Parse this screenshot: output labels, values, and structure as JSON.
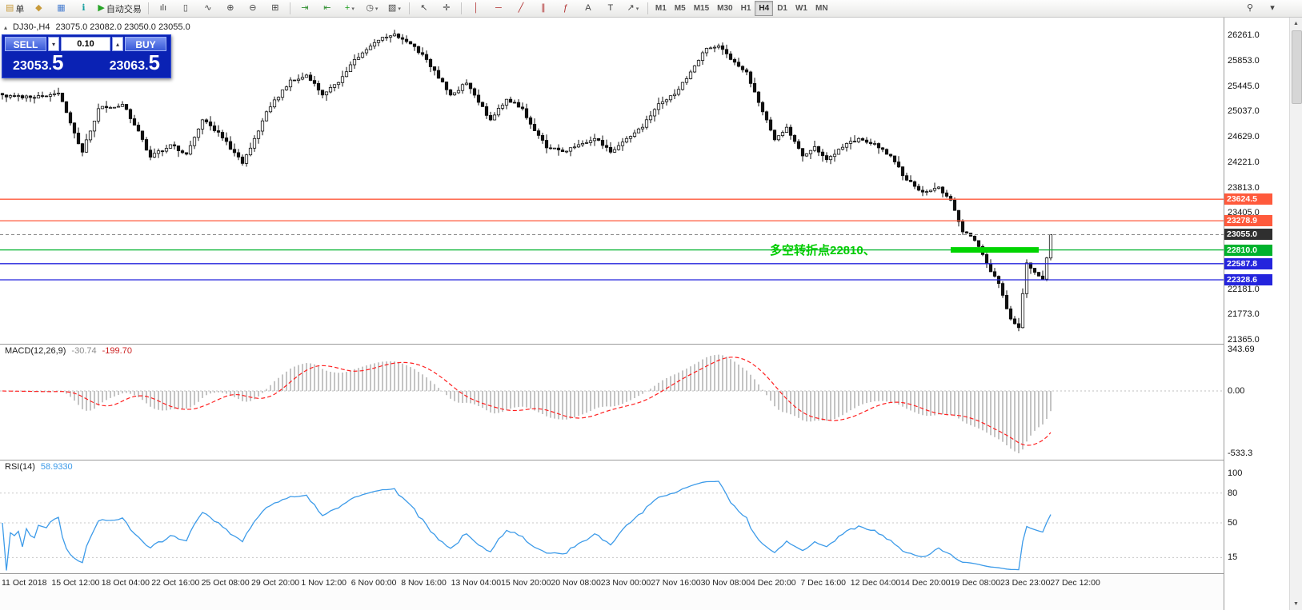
{
  "toolbar": {
    "groups": [
      {
        "name": "trade-group",
        "items": [
          {
            "name": "new-order-button",
            "glyph": "▤",
            "glyph_color": "#c89a3a",
            "label": "单"
          },
          {
            "name": "profiles-button",
            "glyph": "◆",
            "glyph_color": "#c89a3a"
          },
          {
            "name": "market-watch-button",
            "glyph": "▦",
            "glyph_color": "#4a7fd0"
          },
          {
            "name": "data-window-button",
            "glyph": "ℹ",
            "glyph_color": "#18a0a0"
          },
          {
            "name": "autotrading-button",
            "glyph": "▶",
            "glyph_color": "#28a428",
            "label": "自动交易"
          }
        ]
      },
      {
        "name": "chart-type-group",
        "items": [
          {
            "name": "bar-chart-button",
            "glyph": "ılı"
          },
          {
            "name": "candlestick-button",
            "glyph": "▯"
          },
          {
            "name": "line-chart-button",
            "glyph": "∿"
          },
          {
            "name": "zoom-in-button",
            "glyph": "⊕"
          },
          {
            "name": "zoom-out-button",
            "glyph": "⊖"
          },
          {
            "name": "tile-windows-button",
            "glyph": "⊞"
          }
        ]
      },
      {
        "name": "chart-tools-group",
        "items": [
          {
            "name": "auto-scroll-button",
            "glyph": "⇥",
            "glyph_color": "#2e8e2e"
          },
          {
            "name": "chart-shift-button",
            "glyph": "⇤",
            "glyph_color": "#2e8e2e"
          },
          {
            "name": "insert-indicator-button",
            "glyph": "+",
            "glyph_color": "#1a9e1a",
            "arrow": "▾"
          },
          {
            "name": "periods-button",
            "glyph": "◷",
            "arrow": "▾"
          },
          {
            "name": "templates-button",
            "glyph": "▧",
            "arrow": "▾"
          }
        ]
      },
      {
        "name": "cursor-group",
        "items": [
          {
            "name": "cursor-button",
            "glyph": "↖"
          },
          {
            "name": "crosshair-button",
            "glyph": "✛"
          }
        ]
      },
      {
        "name": "objects-group",
        "items": [
          {
            "name": "vertical-line-button",
            "glyph": "│",
            "glyph_color": "#b03030"
          },
          {
            "name": "horizontal-line-button",
            "glyph": "─",
            "glyph_color": "#b03030"
          },
          {
            "name": "trendline-button",
            "glyph": "╱",
            "glyph_color": "#b03030"
          },
          {
            "name": "channel-button",
            "glyph": "∥",
            "glyph_color": "#b03030"
          },
          {
            "name": "fibonacci-button",
            "glyph": "ƒ",
            "glyph_color": "#b03030"
          },
          {
            "name": "text-button",
            "glyph": "A"
          },
          {
            "name": "label-button",
            "glyph": "T"
          },
          {
            "name": "shapes-button",
            "glyph": "↗",
            "arrow": "▾"
          }
        ]
      }
    ],
    "timeframes": {
      "items": [
        "M1",
        "M5",
        "M15",
        "M30",
        "H1",
        "H4",
        "D1",
        "W1",
        "MN"
      ],
      "active": "H4"
    },
    "right_items": [
      {
        "name": "search-button",
        "glyph": "⚲"
      },
      {
        "name": "toolbar-options-button",
        "glyph": "▾"
      }
    ]
  },
  "chart": {
    "collapse_glyph": "▴",
    "symbol_label": "DJ30-,H4",
    "ohlc_text": "23075.0 23082.0 23050.0 23055.0",
    "annotation": {
      "text": "多空转折点22810、",
      "color": "#00cc00"
    },
    "levels": [
      {
        "name": "resistance-line-upper",
        "value": 23624.5,
        "label": "23624.5",
        "color": "#ff5a3c"
      },
      {
        "name": "resistance-line-lower",
        "value": 23278.9,
        "label": "23278.9",
        "color": "#ff5a3c"
      },
      {
        "name": "pivot-line-22810",
        "value": 22810.0,
        "label": "22810.0",
        "color": "#00b22d"
      },
      {
        "name": "support-line-upper",
        "value": 22587.8,
        "label": "22587.8",
        "color": "#2424dd"
      },
      {
        "name": "support-line-lower",
        "value": 22328.6,
        "label": "22328.6",
        "color": "#2424dd"
      }
    ],
    "current_price_tag": {
      "label": "23055.0",
      "value": 23055.0,
      "bg": "#2f2f2f"
    },
    "thick_segment": {
      "value": 22810.0,
      "from_bar": 237,
      "to_bar": 259,
      "color": "#00d400"
    },
    "price_axis_labels": [
      "26261.0",
      "25853.0",
      "25445.0",
      "25037.0",
      "24629.0",
      "24221.0",
      "23813.0",
      "23405.0",
      "22181.0",
      "21773.0",
      "21365.0"
    ],
    "time_axis_labels": [
      "11 Oct 2018",
      "15 Oct 12:00",
      "18 Oct 04:00",
      "22 Oct 16:00",
      "25 Oct 08:00",
      "29 Oct 20:00",
      "1 Nov 12:00",
      "6 Nov 00:00",
      "8 Nov 16:00",
      "13 Nov 04:00",
      "15 Nov 20:00",
      "20 Nov 08:00",
      "23 Nov 00:00",
      "27 Nov 16:00",
      "30 Nov 08:00",
      "4 Dec 20:00",
      "7 Dec 16:00",
      "12 Dec 04:00",
      "14 Dec 20:00",
      "19 Dec 08:00",
      "23 Dec 23:00",
      "27 Dec 12:00"
    ]
  },
  "one_click": {
    "sell_label": "SELL",
    "buy_label": "BUY",
    "volume": "0.10",
    "spin_up": "▴",
    "spin_down": "▾",
    "sell_price": {
      "main": "23053.",
      "pip": "5"
    },
    "buy_price": {
      "main": "23063.",
      "pip": "5"
    },
    "panel_bg": "#0a22b4"
  },
  "macd": {
    "name_label": "MACD(12,26,9)",
    "value_main": "-30.74",
    "value_signal": "-199.70",
    "axis_labels": [
      "343.69",
      "0.00",
      "-533.3"
    ],
    "histogram_color": "#c4c4c4",
    "signal_color": "#ff2020"
  },
  "rsi": {
    "name_label": "RSI(14)",
    "value": "58.9330",
    "axis_labels": [
      "100",
      "80",
      "50",
      "15"
    ],
    "level_values": [
      80,
      50,
      15
    ],
    "line_color": "#3d9be9"
  },
  "scrollbar": {
    "up_glyph": "▲",
    "down_glyph": "▼"
  },
  "chart_data": {
    "type": "candlestick",
    "symbol": "DJ30-",
    "timeframe": "H4",
    "bars": 263,
    "price_range": [
      21365.0,
      26261.0
    ],
    "last_close": 23055.0,
    "indicators": [
      {
        "type": "MACD",
        "params": [
          12,
          26,
          9
        ],
        "current": [
          -30.74,
          -199.7
        ],
        "range": [
          -533.3,
          343.69
        ]
      },
      {
        "type": "RSI",
        "params": [
          14
        ],
        "current": 58.933
      }
    ],
    "close_keypoints": [
      [
        0,
        25300
      ],
      [
        8,
        25250
      ],
      [
        14,
        25330
      ],
      [
        17,
        24850
      ],
      [
        20,
        24380
      ],
      [
        24,
        25080
      ],
      [
        30,
        25150
      ],
      [
        34,
        24720
      ],
      [
        37,
        24300
      ],
      [
        42,
        24500
      ],
      [
        46,
        24350
      ],
      [
        50,
        24900
      ],
      [
        54,
        24700
      ],
      [
        60,
        24200
      ],
      [
        64,
        24720
      ],
      [
        66,
        25030
      ],
      [
        72,
        25540
      ],
      [
        76,
        25620
      ],
      [
        80,
        25300
      ],
      [
        84,
        25500
      ],
      [
        88,
        25870
      ],
      [
        94,
        26180
      ],
      [
        98,
        26280
      ],
      [
        102,
        26120
      ],
      [
        106,
        25870
      ],
      [
        112,
        25300
      ],
      [
        116,
        25490
      ],
      [
        122,
        24900
      ],
      [
        126,
        25230
      ],
      [
        130,
        25080
      ],
      [
        132,
        24830
      ],
      [
        136,
        24450
      ],
      [
        140,
        24390
      ],
      [
        144,
        24500
      ],
      [
        148,
        24600
      ],
      [
        152,
        24380
      ],
      [
        156,
        24600
      ],
      [
        160,
        24780
      ],
      [
        164,
        25160
      ],
      [
        168,
        25310
      ],
      [
        172,
        25670
      ],
      [
        176,
        26050
      ],
      [
        179,
        26090
      ],
      [
        182,
        25870
      ],
      [
        186,
        25670
      ],
      [
        190,
        25030
      ],
      [
        193,
        24580
      ],
      [
        196,
        24780
      ],
      [
        200,
        24320
      ],
      [
        203,
        24470
      ],
      [
        206,
        24260
      ],
      [
        210,
        24460
      ],
      [
        214,
        24600
      ],
      [
        218,
        24520
      ],
      [
        222,
        24320
      ],
      [
        226,
        23930
      ],
      [
        230,
        23740
      ],
      [
        234,
        23820
      ],
      [
        237,
        23610
      ],
      [
        240,
        23100
      ],
      [
        243,
        22960
      ],
      [
        246,
        22590
      ],
      [
        249,
        22270
      ],
      [
        252,
        21700
      ],
      [
        254,
        21560
      ],
      [
        256,
        22600
      ],
      [
        258,
        22450
      ],
      [
        260,
        22340
      ],
      [
        262,
        23055
      ]
    ]
  }
}
